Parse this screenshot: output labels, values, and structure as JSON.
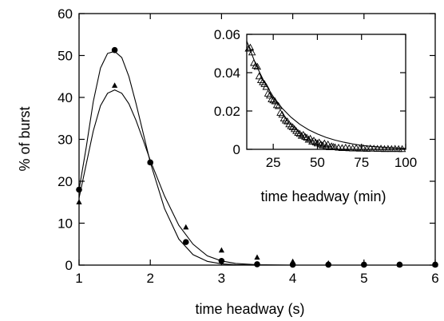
{
  "chart_data": [
    {
      "type": "scatter",
      "role": "main",
      "xlabel": "time headway (s)",
      "ylabel": "% of burst",
      "xlim": [
        1,
        6
      ],
      "ylim": [
        0,
        60
      ],
      "xticks": [
        1,
        2,
        3,
        4,
        5,
        6
      ],
      "yticks": [
        0,
        10,
        20,
        30,
        40,
        50,
        60
      ],
      "grid": false,
      "series": [
        {
          "marker": "circle",
          "x": [
            1,
            1.5,
            2,
            2.5,
            3,
            3.5,
            4,
            4.5,
            5,
            5.5,
            6
          ],
          "y": [
            18,
            51.3,
            24.5,
            5.5,
            1.0,
            0.2,
            0.1,
            0.1,
            0.1,
            0.1,
            0.1
          ]
        },
        {
          "marker": "triangle",
          "x": [
            1,
            1.5,
            2,
            2.5,
            3,
            3.5,
            4,
            4.5,
            5,
            5.5,
            6
          ],
          "y": [
            15,
            42.8,
            24.5,
            9.0,
            3.5,
            1.8,
            0.8,
            0.4,
            0.2,
            0.1,
            0.1
          ]
        },
        {
          "line": "fit",
          "x": [
            1,
            1.1,
            1.2,
            1.3,
            1.4,
            1.5,
            1.6,
            1.7,
            1.8,
            1.9,
            2.0,
            2.2,
            2.4,
            2.6,
            2.8,
            3.0,
            3.2,
            3.5,
            4,
            5,
            6
          ],
          "y": [
            18,
            28,
            39,
            47,
            50.5,
            51,
            49.5,
            45,
            38.5,
            31.5,
            24.5,
            13.5,
            6.2,
            2.5,
            0.9,
            0.3,
            0.1,
            0,
            0,
            0,
            0
          ]
        },
        {
          "line": "fit",
          "x": [
            1,
            1.1,
            1.2,
            1.3,
            1.4,
            1.5,
            1.6,
            1.7,
            1.8,
            1.9,
            2.0,
            2.2,
            2.4,
            2.6,
            2.8,
            3.0,
            3.2,
            3.5,
            4,
            5,
            6
          ],
          "y": [
            16,
            24,
            32,
            38,
            41,
            41.8,
            41,
            38.5,
            34.5,
            29.8,
            25,
            16.5,
            9.5,
            5,
            2.2,
            1.0,
            0.4,
            0.1,
            0,
            0,
            0
          ]
        }
      ]
    },
    {
      "type": "scatter",
      "role": "inset",
      "xlabel": "time headway (min)",
      "ylabel": "",
      "xlim": [
        10,
        100
      ],
      "ylim": [
        0,
        0.06
      ],
      "xticks": [
        25,
        50,
        75,
        100
      ],
      "yticks": [
        0,
        0.02,
        0.04,
        0.06
      ],
      "ytick_labels": [
        "0",
        "0.02",
        "0.04",
        "0.06"
      ],
      "grid": false,
      "series": [
        {
          "marker": "open-triangle",
          "x": [
            11,
            12,
            13,
            14,
            15,
            16,
            17,
            18,
            19,
            20,
            21,
            22,
            23,
            24,
            25,
            26,
            27,
            28,
            29,
            30,
            31,
            32,
            33,
            34,
            35,
            36,
            37,
            38,
            39,
            40,
            41,
            42,
            43,
            44,
            45,
            46,
            47,
            48,
            49,
            50,
            51,
            52,
            53,
            54,
            55,
            56,
            57,
            58,
            59,
            60,
            62,
            64,
            66,
            68,
            70,
            72,
            74,
            76,
            78,
            80,
            82,
            84,
            86,
            88,
            90,
            92,
            94,
            96,
            98
          ],
          "y": [
            0.0525,
            0.053,
            0.0505,
            0.045,
            0.0435,
            0.043,
            0.038,
            0.036,
            0.035,
            0.034,
            0.0325,
            0.029,
            0.028,
            0.026,
            0.0255,
            0.025,
            0.023,
            0.0225,
            0.019,
            0.018,
            0.016,
            0.015,
            0.0145,
            0.013,
            0.012,
            0.0115,
            0.0105,
            0.0095,
            0.0085,
            0.008,
            0.007,
            0.0075,
            0.0065,
            0.006,
            0.005,
            0.0055,
            0.004,
            0.0045,
            0.0035,
            0.003,
            0.0035,
            0.0025,
            0.002,
            0.003,
            0.0015,
            0.0025,
            0.001,
            0.0015,
            0.0012,
            0.001,
            0.0008,
            0.0006,
            0.0008,
            0.0005,
            0.0004,
            0.0006,
            0.0003,
            0.0005,
            0.0002,
            0.0004,
            0.0003,
            0.0002,
            0.0003,
            0.0001,
            0.0002,
            0.0001,
            0.0002,
            0.0001,
            0.0001
          ]
        },
        {
          "line": "fit",
          "x": [
            10,
            15,
            20,
            25,
            30,
            35,
            40,
            45,
            50,
            55,
            60,
            65,
            70,
            75,
            80,
            85,
            90,
            95,
            100
          ],
          "y": [
            0.0565,
            0.0445,
            0.035,
            0.0275,
            0.0215,
            0.0168,
            0.0131,
            0.0102,
            0.008,
            0.0062,
            0.0048,
            0.0037,
            0.0028,
            0.0021,
            0.0016,
            0.0012,
            0.0009,
            0.0007,
            0.0005
          ]
        }
      ]
    }
  ]
}
